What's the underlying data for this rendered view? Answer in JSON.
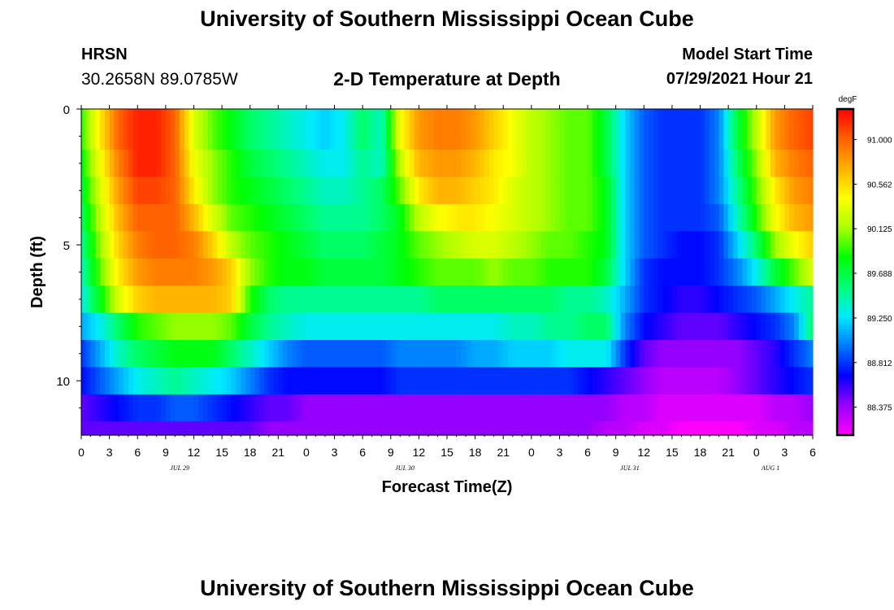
{
  "header": {
    "title": "University of Southern Mississippi Ocean Cube",
    "station": "HRSN",
    "coords": "30.2658N  89.0785W",
    "chart_title": "2-D Temperature at Depth",
    "model_start_label": "Model Start Time",
    "model_start_value": "07/29/2021 Hour 21"
  },
  "footer": {
    "title": "University of Southern Mississippi Ocean Cube"
  },
  "colors": {
    "stops": [
      "#ff00ff",
      "#9a00ff",
      "#0000ff",
      "#0078ff",
      "#00eaff",
      "#00ff78",
      "#00ff00",
      "#aaff00",
      "#ffff00",
      "#ffb000",
      "#ff6000",
      "#ff0000"
    ]
  },
  "chart_data": {
    "type": "heatmap",
    "title": "2-D Temperature at Depth",
    "xlabel": "Forecast Time(Z)",
    "ylabel": "Depth (ft)",
    "x_tick_labels": [
      "0",
      "3",
      "6",
      "9",
      "12",
      "15",
      "18",
      "21",
      "0",
      "3",
      "6",
      "9",
      "12",
      "15",
      "18",
      "21",
      "0",
      "3",
      "6",
      "9",
      "12",
      "15",
      "18",
      "21",
      "0",
      "3",
      "6"
    ],
    "x_hours": [
      0,
      78
    ],
    "day_labels": [
      {
        "label": "JUL 29",
        "hour": 10.5
      },
      {
        "label": "JUL 30",
        "hour": 34.5
      },
      {
        "label": "JUL 31",
        "hour": 58.5
      },
      {
        "label": "AUG 1",
        "hour": 73.5
      }
    ],
    "y_range_ft": [
      0,
      12
    ],
    "y_tick_labels": [
      {
        "label": "0",
        "value": 0
      },
      {
        "label": "5",
        "value": 5
      },
      {
        "label": "10",
        "value": 10
      }
    ],
    "colorbar": {
      "unit": "degF",
      "range": [
        88.1,
        91.3
      ],
      "tick_labels": [
        "91.000",
        "90.562",
        "90.125",
        "89.688",
        "89.250",
        "88.812",
        "88.375"
      ],
      "tick_values": [
        91.0,
        90.562,
        90.125,
        89.688,
        89.25,
        88.812,
        88.375
      ]
    },
    "layer_bounds_ft": [
      0,
      0.5,
      1.5,
      2.5,
      3.5,
      4.5,
      5.5,
      6.5,
      7.5,
      8.5,
      9.5,
      10.5,
      11.5,
      12
    ],
    "time_hours": [
      0,
      2,
      4,
      6,
      8,
      10,
      12,
      14,
      16,
      18,
      20,
      22,
      24,
      26,
      28,
      30,
      32,
      34,
      36,
      38,
      40,
      42,
      44,
      46,
      48,
      50,
      52,
      54,
      56,
      58,
      60,
      62,
      64,
      66,
      68,
      70,
      72,
      74,
      76,
      78
    ],
    "temperature_degF": [
      [
        89.9,
        90.5,
        91.0,
        91.2,
        91.2,
        91.0,
        90.3,
        90.0,
        89.8,
        89.6,
        89.5,
        89.4,
        89.3,
        89.2,
        89.3,
        89.6,
        89.4,
        90.4,
        90.8,
        90.9,
        90.9,
        90.8,
        90.6,
        90.4,
        90.2,
        90.1,
        90.0,
        90.0,
        89.7,
        89.2,
        88.9,
        88.8,
        88.8,
        88.8,
        89.0,
        89.7,
        90.2,
        90.8,
        91.0,
        91.1
      ],
      [
        89.9,
        90.5,
        91.0,
        91.2,
        91.2,
        91.0,
        90.3,
        90.0,
        89.8,
        89.6,
        89.5,
        89.4,
        89.3,
        89.2,
        89.3,
        89.6,
        89.4,
        90.4,
        90.8,
        90.9,
        90.9,
        90.8,
        90.6,
        90.4,
        90.2,
        90.1,
        90.0,
        90.0,
        89.7,
        89.2,
        88.9,
        88.8,
        88.8,
        88.8,
        89.0,
        89.7,
        90.2,
        90.8,
        91.0,
        91.1
      ],
      [
        89.8,
        90.4,
        90.9,
        91.2,
        91.2,
        91.0,
        90.4,
        90.1,
        89.9,
        89.7,
        89.6,
        89.5,
        89.4,
        89.3,
        89.3,
        89.5,
        89.4,
        90.2,
        90.7,
        90.8,
        90.8,
        90.7,
        90.5,
        90.4,
        90.2,
        90.1,
        90.0,
        90.0,
        89.7,
        89.2,
        88.9,
        88.8,
        88.8,
        88.8,
        89.0,
        89.6,
        90.1,
        90.7,
        90.9,
        91.0
      ],
      [
        89.7,
        90.3,
        90.8,
        91.1,
        91.1,
        91.0,
        90.5,
        90.1,
        89.9,
        89.8,
        89.7,
        89.6,
        89.5,
        89.4,
        89.4,
        89.5,
        89.6,
        90.0,
        90.5,
        90.7,
        90.7,
        90.6,
        90.5,
        90.3,
        90.2,
        90.1,
        90.0,
        90.0,
        89.8,
        89.2,
        88.9,
        88.8,
        88.8,
        88.8,
        89.0,
        89.5,
        90.0,
        90.5,
        90.8,
        90.9
      ],
      [
        89.6,
        90.2,
        90.7,
        91.0,
        91.0,
        91.0,
        90.7,
        90.3,
        90.0,
        89.9,
        89.8,
        89.7,
        89.6,
        89.5,
        89.5,
        89.5,
        89.6,
        89.8,
        90.2,
        90.4,
        90.5,
        90.5,
        90.4,
        90.3,
        90.2,
        90.1,
        90.0,
        90.0,
        89.8,
        89.2,
        88.9,
        88.8,
        88.8,
        88.8,
        88.9,
        89.4,
        89.9,
        90.4,
        90.7,
        90.8
      ],
      [
        89.5,
        90.1,
        90.6,
        90.9,
        91.0,
        91.0,
        90.9,
        90.6,
        90.2,
        90.0,
        89.9,
        89.8,
        89.7,
        89.6,
        89.6,
        89.6,
        89.7,
        89.8,
        90.0,
        90.1,
        90.2,
        90.3,
        90.3,
        90.2,
        90.1,
        90.0,
        90.0,
        89.9,
        89.8,
        89.2,
        88.9,
        88.8,
        88.7,
        88.7,
        88.8,
        89.2,
        89.6,
        90.1,
        90.4,
        90.6
      ],
      [
        89.4,
        90.0,
        90.5,
        90.8,
        90.9,
        90.9,
        90.9,
        90.8,
        90.6,
        90.1,
        89.9,
        89.8,
        89.8,
        89.7,
        89.7,
        89.7,
        89.7,
        89.8,
        89.9,
        90.0,
        90.0,
        90.0,
        90.1,
        90.0,
        90.0,
        89.9,
        89.9,
        89.9,
        89.7,
        89.2,
        88.8,
        88.7,
        88.7,
        88.7,
        88.8,
        89.0,
        89.3,
        89.7,
        90.0,
        90.3
      ],
      [
        89.3,
        89.8,
        90.3,
        90.6,
        90.7,
        90.7,
        90.7,
        90.7,
        90.6,
        89.9,
        89.6,
        89.5,
        89.5,
        89.5,
        89.5,
        89.5,
        89.5,
        89.5,
        89.5,
        89.6,
        89.6,
        89.6,
        89.6,
        89.6,
        89.6,
        89.6,
        89.5,
        89.5,
        89.4,
        89.1,
        88.8,
        88.7,
        88.6,
        88.6,
        88.7,
        88.8,
        88.9,
        89.1,
        89.3,
        89.5
      ],
      [
        89.1,
        89.3,
        89.6,
        89.9,
        90.0,
        90.1,
        90.1,
        90.1,
        90.0,
        89.7,
        89.5,
        89.4,
        89.3,
        89.3,
        89.3,
        89.3,
        89.3,
        89.3,
        89.3,
        89.3,
        89.3,
        89.3,
        89.3,
        89.4,
        89.4,
        89.5,
        89.5,
        89.6,
        89.6,
        89.0,
        88.7,
        88.6,
        88.5,
        88.5,
        88.5,
        88.6,
        88.7,
        88.8,
        89.0,
        89.6
      ],
      [
        88.8,
        89.1,
        89.4,
        89.6,
        89.7,
        89.8,
        89.8,
        89.8,
        89.6,
        89.4,
        89.2,
        89.0,
        88.9,
        88.9,
        88.9,
        88.9,
        88.9,
        89.0,
        89.0,
        89.0,
        89.0,
        89.1,
        89.1,
        89.2,
        89.2,
        89.2,
        89.3,
        89.3,
        89.3,
        88.8,
        88.5,
        88.4,
        88.4,
        88.4,
        88.4,
        88.4,
        88.5,
        88.6,
        88.8,
        89.0
      ],
      [
        88.7,
        88.9,
        89.1,
        89.3,
        89.4,
        89.5,
        89.4,
        89.3,
        89.2,
        89.0,
        88.8,
        88.7,
        88.7,
        88.7,
        88.7,
        88.7,
        88.7,
        88.8,
        88.8,
        88.8,
        88.8,
        88.8,
        88.8,
        88.8,
        88.8,
        88.8,
        88.8,
        88.7,
        88.6,
        88.5,
        88.4,
        88.3,
        88.3,
        88.3,
        88.3,
        88.4,
        88.5,
        88.6,
        88.7,
        88.8
      ],
      [
        88.5,
        88.6,
        88.7,
        88.8,
        88.8,
        88.9,
        88.9,
        88.8,
        88.7,
        88.6,
        88.5,
        88.5,
        88.4,
        88.4,
        88.4,
        88.4,
        88.4,
        88.4,
        88.4,
        88.4,
        88.4,
        88.4,
        88.4,
        88.4,
        88.4,
        88.4,
        88.4,
        88.4,
        88.4,
        88.3,
        88.3,
        88.2,
        88.2,
        88.2,
        88.2,
        88.2,
        88.2,
        88.3,
        88.3,
        88.4
      ],
      [
        88.5,
        88.5,
        88.5,
        88.5,
        88.5,
        88.5,
        88.5,
        88.5,
        88.5,
        88.5,
        88.4,
        88.4,
        88.4,
        88.4,
        88.4,
        88.4,
        88.4,
        88.4,
        88.4,
        88.4,
        88.4,
        88.4,
        88.4,
        88.4,
        88.4,
        88.4,
        88.4,
        88.4,
        88.3,
        88.3,
        88.2,
        88.2,
        88.1,
        88.1,
        88.1,
        88.1,
        88.2,
        88.2,
        88.3,
        88.3
      ],
      [
        88.4,
        88.4,
        88.4,
        88.4,
        88.4,
        88.4,
        88.4,
        88.4,
        88.4,
        88.4,
        88.4,
        88.4,
        88.4,
        88.4,
        88.4,
        88.4,
        88.4,
        88.4,
        88.4,
        88.4,
        88.4,
        88.4,
        88.4,
        88.4,
        88.4,
        88.4,
        88.4,
        88.4,
        88.3,
        88.3,
        88.2,
        88.2,
        88.1,
        88.1,
        88.1,
        88.1,
        88.2,
        88.2,
        88.3,
        88.3
      ]
    ]
  }
}
